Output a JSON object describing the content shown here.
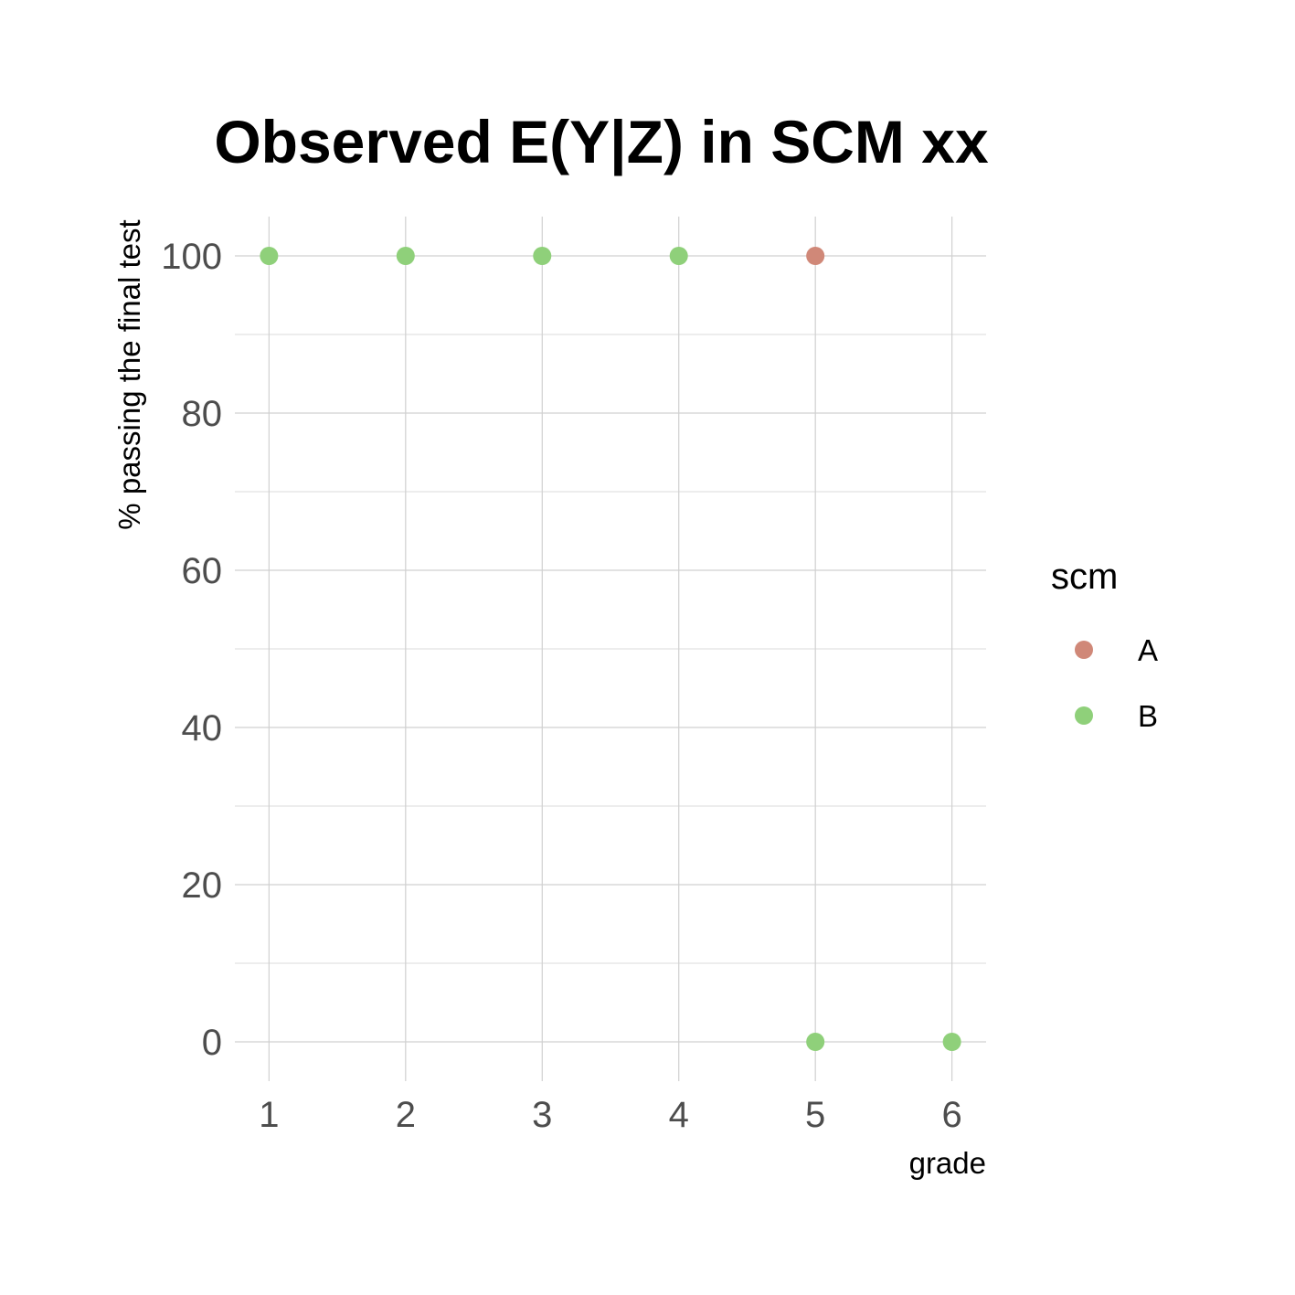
{
  "chart_data": {
    "type": "scatter",
    "title": "Observed E(Y|Z) in SCM xx",
    "xlabel": "grade",
    "ylabel": "% passing the final test",
    "xlim": [
      0.75,
      6.25
    ],
    "ylim": [
      -5,
      105
    ],
    "x_ticks": [
      1,
      2,
      3,
      4,
      5,
      6
    ],
    "y_ticks": [
      0,
      20,
      40,
      60,
      80,
      100
    ],
    "y_minor_ticks": [
      10,
      30,
      50,
      70,
      90
    ],
    "grid": true,
    "legend": {
      "title": "scm",
      "position": "right"
    },
    "series": [
      {
        "name": "A",
        "color": "#d08878",
        "points": [
          {
            "x": 5,
            "y": 100
          }
        ]
      },
      {
        "name": "B",
        "color": "#8fd07a",
        "points": [
          {
            "x": 1,
            "y": 100
          },
          {
            "x": 2,
            "y": 100
          },
          {
            "x": 3,
            "y": 100
          },
          {
            "x": 4,
            "y": 100
          },
          {
            "x": 5,
            "y": 0
          },
          {
            "x": 6,
            "y": 0
          }
        ]
      }
    ]
  }
}
